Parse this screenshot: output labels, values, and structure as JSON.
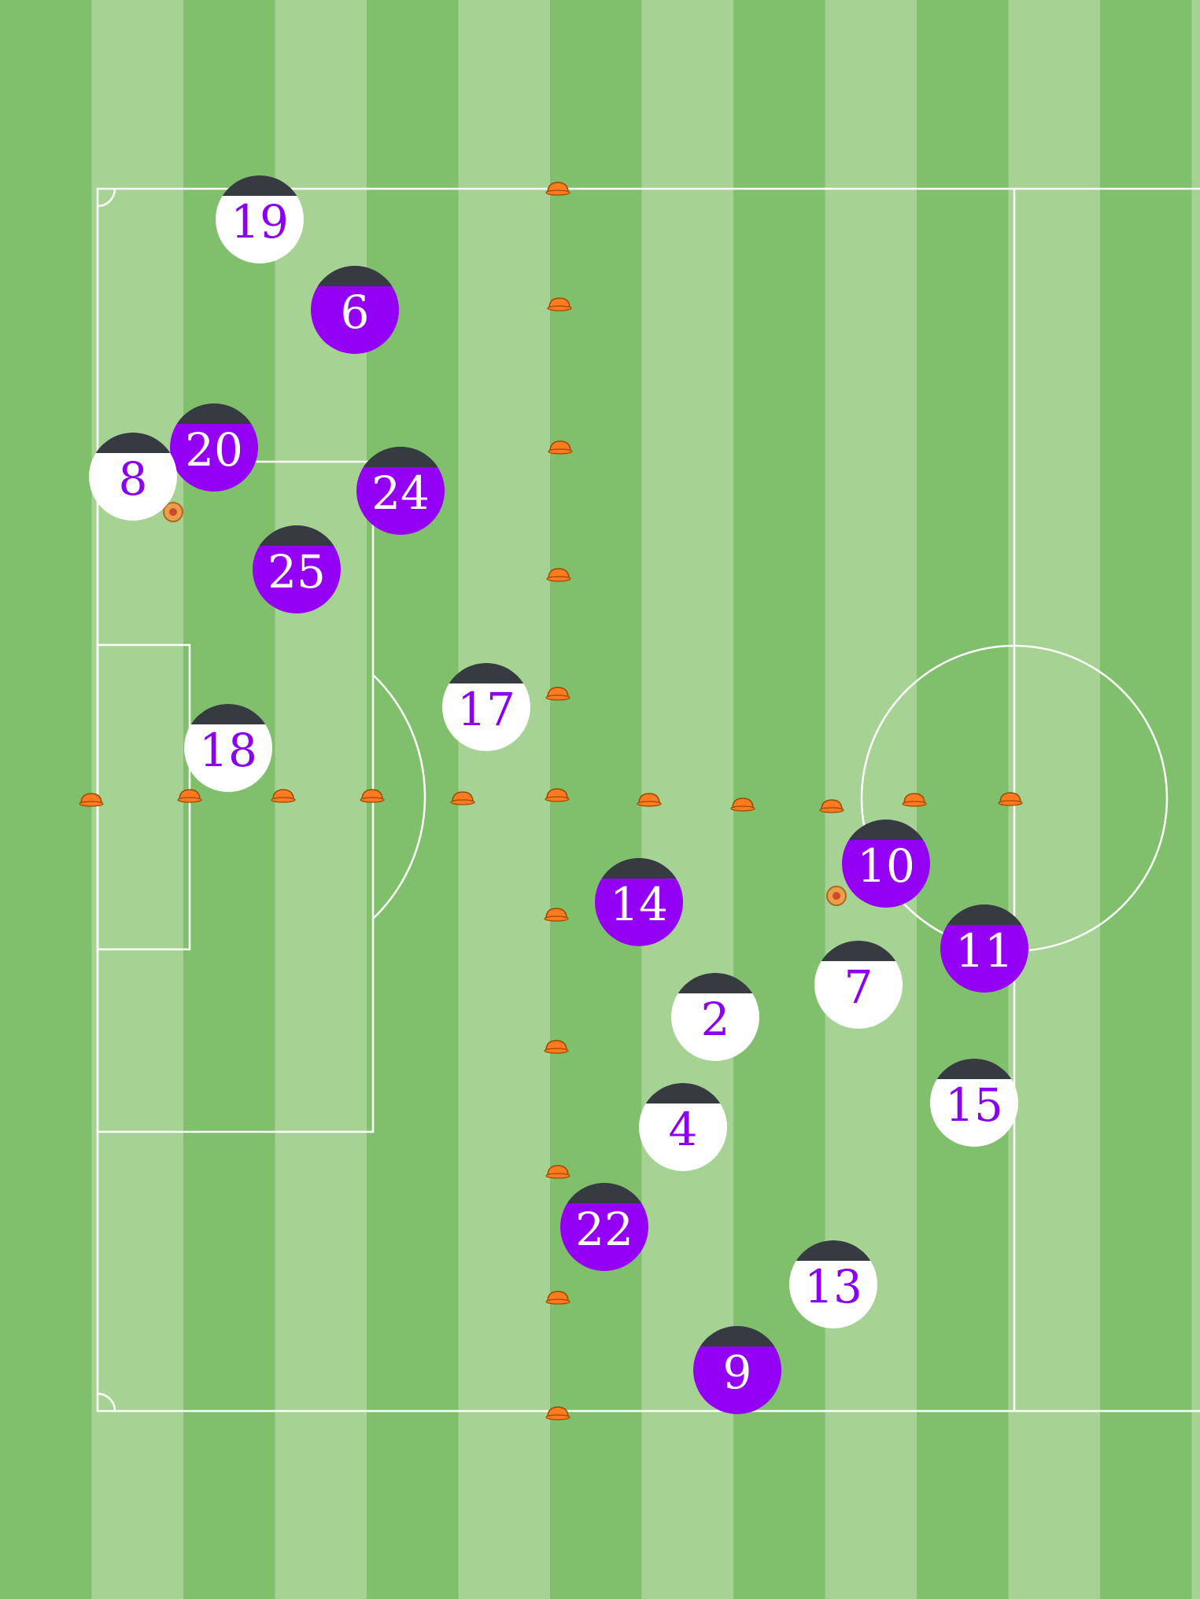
{
  "pitch": {
    "colors": {
      "stripe_light": "#a6d293",
      "stripe_dark": "#80c06d",
      "line": "#ffffff",
      "cone": "#ff7b1f",
      "cone_outline": "#9a4a00",
      "ball": "#e8a14a"
    }
  },
  "teams": {
    "purple": {
      "body": "#9400f4",
      "cap": "#353b41",
      "number_color": "#ffffff"
    },
    "white": {
      "body": "#ffffff",
      "cap": "#353b41",
      "number_color": "#8a00f0"
    }
  },
  "players": [
    {
      "team": "white",
      "number": "19"
    },
    {
      "team": "purple",
      "number": "6"
    },
    {
      "team": "purple",
      "number": "20"
    },
    {
      "team": "white",
      "number": "8"
    },
    {
      "team": "purple",
      "number": "24"
    },
    {
      "team": "purple",
      "number": "25"
    },
    {
      "team": "white",
      "number": "17"
    },
    {
      "team": "white",
      "number": "18"
    },
    {
      "team": "purple",
      "number": "14"
    },
    {
      "team": "purple",
      "number": "10"
    },
    {
      "team": "purple",
      "number": "11"
    },
    {
      "team": "white",
      "number": "7"
    },
    {
      "team": "white",
      "number": "2"
    },
    {
      "team": "white",
      "number": "4"
    },
    {
      "team": "white",
      "number": "15"
    },
    {
      "team": "purple",
      "number": "22"
    },
    {
      "team": "white",
      "number": "13"
    },
    {
      "team": "purple",
      "number": "9"
    }
  ],
  "balls_count": 2,
  "cones_count": 20
}
